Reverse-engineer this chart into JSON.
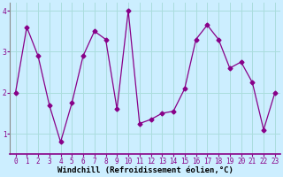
{
  "x": [
    0,
    1,
    2,
    3,
    4,
    5,
    6,
    7,
    8,
    9,
    10,
    11,
    12,
    13,
    14,
    15,
    16,
    17,
    18,
    19,
    20,
    21,
    22,
    23
  ],
  "y": [
    2.0,
    3.6,
    2.9,
    1.7,
    0.8,
    1.75,
    2.9,
    3.5,
    3.3,
    1.6,
    4.0,
    1.25,
    1.35,
    1.5,
    1.55,
    2.1,
    3.3,
    3.65,
    3.3,
    2.6,
    2.75,
    2.25,
    1.1,
    2.0
  ],
  "line_color": "#880088",
  "marker": "D",
  "marker_size": 2.5,
  "bg_color": "#cceeff",
  "grid_color": "#aadddd",
  "xlabel": "Windchill (Refroidissement éolien,°C)",
  "xlim": [
    -0.5,
    23.5
  ],
  "ylim": [
    0.5,
    4.2
  ],
  "yticks": [
    1,
    2,
    3,
    4
  ],
  "xticks": [
    0,
    1,
    2,
    3,
    4,
    5,
    6,
    7,
    8,
    9,
    10,
    11,
    12,
    13,
    14,
    15,
    16,
    17,
    18,
    19,
    20,
    21,
    22,
    23
  ],
  "tick_label_size": 5.5,
  "xlabel_size": 6.5,
  "spine_color": "#888888"
}
